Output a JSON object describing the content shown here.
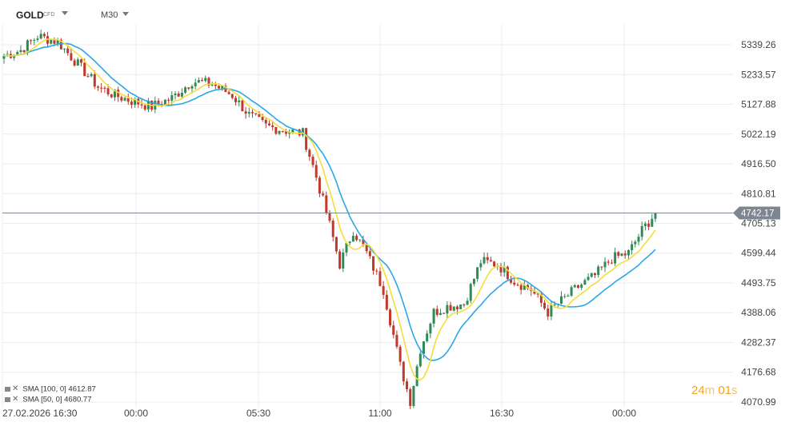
{
  "header": {
    "symbol": "GOLD",
    "symbol_type": "CFD",
    "timeframe": "M30"
  },
  "legend": [
    {
      "label": "SMA [100, 0] 4612.87",
      "color": "#29a8e6"
    },
    {
      "label": "SMA [50, 0] 4680.77",
      "color": "#f5dd3a"
    }
  ],
  "timer": {
    "minutes": "24",
    "min_unit": "m",
    "seconds": "01",
    "sec_unit": "s"
  },
  "colors": {
    "up": "#2e8b57",
    "down": "#c0392b",
    "sma100": "#29a8e6",
    "sma50": "#f5dd3a",
    "price_tag": "#7d8690"
  },
  "chart_data": {
    "type": "candlestick",
    "symbol": "GOLD",
    "ylim": [
      4050,
      5400
    ],
    "y_ticks": [
      "5339.26",
      "5233.57",
      "5127.88",
      "5022.19",
      "4916.50",
      "4810.81",
      "4705.13",
      "4599.44",
      "4493.75",
      "4388.06",
      "4282.37",
      "4176.68",
      "4070.99"
    ],
    "x_ticks": [
      "27.02.2026 16:30",
      "00:00",
      "05:30",
      "11:00",
      "16:30",
      "00:00"
    ],
    "current_price": "4742.17",
    "price_keypoints": [
      [
        0,
        5300
      ],
      [
        5,
        5320
      ],
      [
        10,
        5370
      ],
      [
        16,
        5350
      ],
      [
        22,
        5270
      ],
      [
        28,
        5190
      ],
      [
        33,
        5160
      ],
      [
        38,
        5140
      ],
      [
        44,
        5120
      ],
      [
        50,
        5150
      ],
      [
        56,
        5210
      ],
      [
        62,
        5200
      ],
      [
        68,
        5160
      ],
      [
        73,
        5090
      ],
      [
        78,
        5050
      ],
      [
        84,
        5035
      ],
      [
        89,
        5025
      ],
      [
        93,
        4870
      ],
      [
        97,
        4700
      ],
      [
        100,
        4560
      ],
      [
        104,
        4680
      ],
      [
        108,
        4600
      ],
      [
        113,
        4470
      ],
      [
        118,
        4200
      ],
      [
        121,
        4075
      ],
      [
        124,
        4260
      ],
      [
        128,
        4390
      ],
      [
        132,
        4410
      ],
      [
        137,
        4420
      ],
      [
        142,
        4570
      ],
      [
        147,
        4560
      ],
      [
        152,
        4500
      ],
      [
        157,
        4470
      ],
      [
        162,
        4390
      ],
      [
        166,
        4430
      ],
      [
        171,
        4480
      ],
      [
        176,
        4520
      ],
      [
        181,
        4580
      ],
      [
        186,
        4600
      ],
      [
        190,
        4680
      ],
      [
        194,
        4742.17
      ]
    ],
    "series": [
      {
        "name": "SMA [100, 0]",
        "last": 4612.87
      },
      {
        "name": "SMA [50, 0]",
        "last": 4680.77
      }
    ]
  }
}
